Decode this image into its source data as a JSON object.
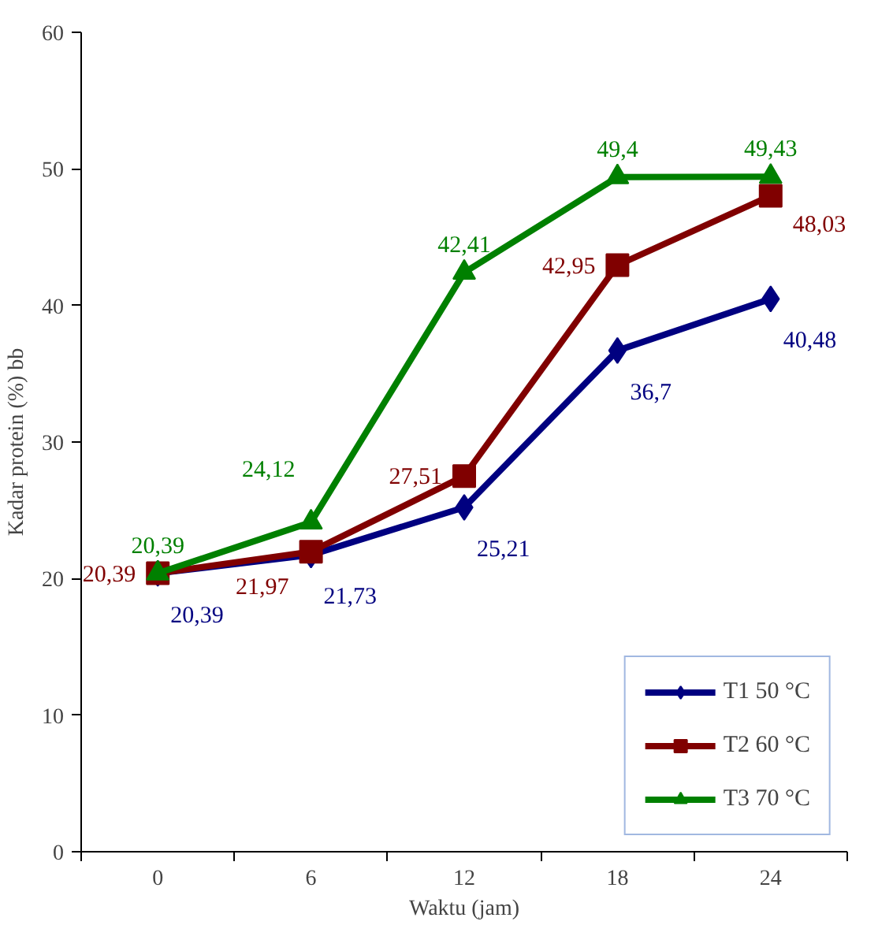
{
  "chart_data": {
    "type": "line",
    "xlabel": "Waktu (jam)",
    "ylabel": "Kadar protein (%) bb",
    "categories": [
      "0",
      "6",
      "12",
      "18",
      "24"
    ],
    "series": [
      {
        "name": "T1 50 °C",
        "color": "#000080",
        "marker": "diamond",
        "values": [
          20.39,
          21.73,
          25.21,
          36.7,
          40.48
        ],
        "value_labels": [
          "20,39",
          "21,73",
          "25,21",
          "36,7",
          "40,48"
        ]
      },
      {
        "name": "T2 60 °C",
        "color": "#800000",
        "marker": "square",
        "values": [
          20.39,
          21.97,
          27.51,
          42.95,
          48.03
        ],
        "value_labels": [
          "20,39",
          "21,97",
          "27,51",
          "42,95",
          "48,03"
        ]
      },
      {
        "name": "T3 70 °C",
        "color": "#008000",
        "marker": "triangle",
        "values": [
          20.39,
          24.12,
          42.41,
          49.4,
          49.43
        ],
        "value_labels": [
          "20,39",
          "24,12",
          "42,41",
          "49,4",
          "49,43"
        ]
      }
    ],
    "ylim": [
      0,
      60
    ],
    "yticks": [
      0,
      10,
      20,
      30,
      40,
      50,
      60
    ],
    "grid": false,
    "legend": "bottom right"
  }
}
